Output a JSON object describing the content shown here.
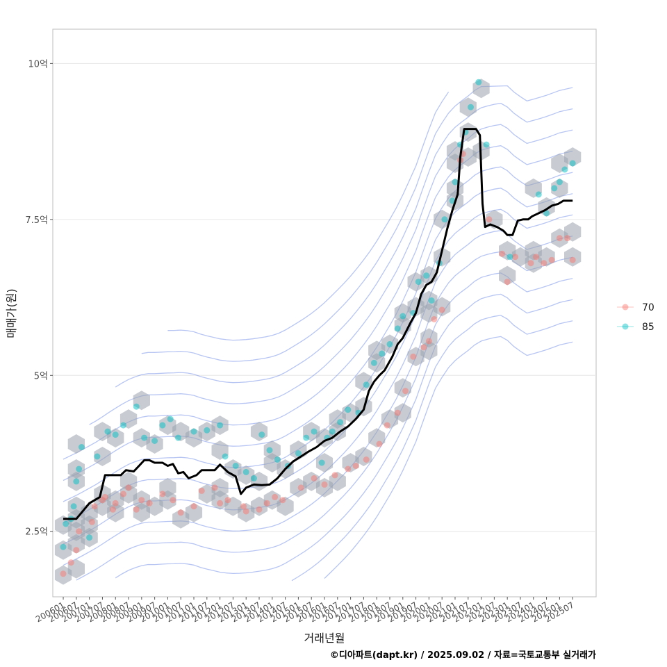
{
  "chart_data": {
    "type": "scatter",
    "xlabel": "거래년월",
    "ylabel": "매매가(원)",
    "caption": "©디아파트(dapt.kr) / 2025.09.02 / 자료=국토교통부 실거래가",
    "ylim": [
      1.45,
      10.55
    ],
    "y_ticks": [
      {
        "value": 2.5,
        "label": "2.5억"
      },
      {
        "value": 5,
        "label": "5억"
      },
      {
        "value": 7.5,
        "label": "7.5억"
      },
      {
        "value": 10,
        "label": "10억"
      }
    ],
    "x_range": [
      2005.6,
      2026.4
    ],
    "x_ticks": [
      "200601",
      "200607",
      "200701",
      "200707",
      "200801",
      "200807",
      "200901",
      "200907",
      "201001",
      "201007",
      "201101",
      "201107",
      "201201",
      "201207",
      "201301",
      "201307",
      "201401",
      "201407",
      "201501",
      "201507",
      "201601",
      "201607",
      "201701",
      "201707",
      "201801",
      "201807",
      "201901",
      "201907",
      "202001",
      "202007",
      "202101",
      "202107",
      "202201",
      "202207",
      "202301",
      "202307",
      "202401",
      "202407",
      "202501",
      "202507"
    ],
    "legend": {
      "position": "right",
      "entries": [
        {
          "name": "70",
          "color": "#F8766D"
        },
        {
          "name": "85",
          "color": "#00BFC4"
        }
      ]
    },
    "trend_line": {
      "name": "moving average",
      "color": "#000000",
      "points": [
        [
          2006.0,
          2.7
        ],
        [
          2006.5,
          2.7
        ],
        [
          2006.7,
          2.8
        ],
        [
          2007.0,
          2.95
        ],
        [
          2007.4,
          3.05
        ],
        [
          2007.6,
          3.4
        ],
        [
          2008.2,
          3.4
        ],
        [
          2008.4,
          3.48
        ],
        [
          2008.7,
          3.46
        ],
        [
          2008.9,
          3.55
        ],
        [
          2009.1,
          3.64
        ],
        [
          2009.3,
          3.64
        ],
        [
          2009.5,
          3.6
        ],
        [
          2009.8,
          3.6
        ],
        [
          2010.0,
          3.55
        ],
        [
          2010.2,
          3.58
        ],
        [
          2010.4,
          3.43
        ],
        [
          2010.6,
          3.45
        ],
        [
          2010.8,
          3.35
        ],
        [
          2011.1,
          3.4
        ],
        [
          2011.3,
          3.48
        ],
        [
          2011.5,
          3.48
        ],
        [
          2011.8,
          3.48
        ],
        [
          2012.0,
          3.57
        ],
        [
          2012.3,
          3.45
        ],
        [
          2012.6,
          3.38
        ],
        [
          2012.8,
          3.1
        ],
        [
          2013.0,
          3.2
        ],
        [
          2013.3,
          3.25
        ],
        [
          2013.6,
          3.24
        ],
        [
          2013.9,
          3.25
        ],
        [
          2014.2,
          3.35
        ],
        [
          2014.5,
          3.5
        ],
        [
          2014.8,
          3.62
        ],
        [
          2015.1,
          3.7
        ],
        [
          2015.4,
          3.78
        ],
        [
          2015.7,
          3.85
        ],
        [
          2016.0,
          3.95
        ],
        [
          2016.3,
          4.0
        ],
        [
          2016.6,
          4.1
        ],
        [
          2016.9,
          4.18
        ],
        [
          2017.2,
          4.3
        ],
        [
          2017.5,
          4.45
        ],
        [
          2017.7,
          4.75
        ],
        [
          2017.9,
          4.9
        ],
        [
          2018.1,
          5.0
        ],
        [
          2018.3,
          5.08
        ],
        [
          2018.6,
          5.3
        ],
        [
          2018.8,
          5.5
        ],
        [
          2019.0,
          5.6
        ],
        [
          2019.3,
          5.85
        ],
        [
          2019.5,
          6.0
        ],
        [
          2019.7,
          6.3
        ],
        [
          2019.9,
          6.45
        ],
        [
          2020.1,
          6.5
        ],
        [
          2020.3,
          6.65
        ],
        [
          2020.5,
          7.0
        ],
        [
          2020.7,
          7.35
        ],
        [
          2020.9,
          7.65
        ],
        [
          2021.1,
          7.9
        ],
        [
          2021.2,
          8.5
        ],
        [
          2021.35,
          8.95
        ],
        [
          2021.8,
          8.95
        ],
        [
          2021.95,
          8.85
        ],
        [
          2022.05,
          7.75
        ],
        [
          2022.15,
          7.38
        ],
        [
          2022.35,
          7.42
        ],
        [
          2022.6,
          7.38
        ],
        [
          2022.85,
          7.32
        ],
        [
          2023.0,
          7.25
        ],
        [
          2023.2,
          7.25
        ],
        [
          2023.4,
          7.48
        ],
        [
          2023.6,
          7.5
        ],
        [
          2023.8,
          7.5
        ],
        [
          2023.95,
          7.55
        ],
        [
          2024.2,
          7.6
        ],
        [
          2024.45,
          7.65
        ],
        [
          2024.7,
          7.72
        ],
        [
          2024.95,
          7.75
        ],
        [
          2025.15,
          7.8
        ],
        [
          2025.5,
          7.8
        ]
      ]
    },
    "series": [
      {
        "name": "70",
        "color": "#F8766D",
        "points": [
          [
            2006.0,
            1.82
          ],
          [
            2006.3,
            2.0
          ],
          [
            2006.5,
            2.2
          ],
          [
            2006.6,
            2.5
          ],
          [
            2007.1,
            2.65
          ],
          [
            2007.2,
            2.9
          ],
          [
            2007.5,
            3.0
          ],
          [
            2007.6,
            3.05
          ],
          [
            2007.9,
            2.85
          ],
          [
            2008.0,
            2.95
          ],
          [
            2008.3,
            3.1
          ],
          [
            2008.5,
            3.2
          ],
          [
            2008.8,
            2.85
          ],
          [
            2009.0,
            3.0
          ],
          [
            2009.3,
            2.95
          ],
          [
            2009.8,
            3.1
          ],
          [
            2010.2,
            3.0
          ],
          [
            2010.5,
            2.8
          ],
          [
            2011.0,
            2.9
          ],
          [
            2011.3,
            3.15
          ],
          [
            2011.8,
            3.2
          ],
          [
            2012.0,
            2.95
          ],
          [
            2012.3,
            3.0
          ],
          [
            2012.9,
            2.9
          ],
          [
            2013.0,
            2.82
          ],
          [
            2013.5,
            2.85
          ],
          [
            2013.8,
            2.95
          ],
          [
            2014.1,
            3.05
          ],
          [
            2014.4,
            3.0
          ],
          [
            2015.1,
            3.2
          ],
          [
            2015.6,
            3.35
          ],
          [
            2016.0,
            3.25
          ],
          [
            2016.4,
            3.4
          ],
          [
            2016.9,
            3.5
          ],
          [
            2017.2,
            3.55
          ],
          [
            2017.6,
            3.65
          ],
          [
            2018.1,
            3.9
          ],
          [
            2018.4,
            4.2
          ],
          [
            2018.8,
            4.4
          ],
          [
            2019.1,
            4.75
          ],
          [
            2019.4,
            5.3
          ],
          [
            2019.8,
            5.45
          ],
          [
            2020.0,
            5.55
          ],
          [
            2020.2,
            5.9
          ],
          [
            2020.5,
            6.05
          ],
          [
            2021.2,
            8.45
          ],
          [
            2021.3,
            8.55
          ],
          [
            2022.3,
            7.5
          ],
          [
            2022.8,
            6.95
          ],
          [
            2023.0,
            6.5
          ],
          [
            2023.3,
            6.9
          ],
          [
            2023.9,
            6.8
          ],
          [
            2024.1,
            6.9
          ],
          [
            2024.4,
            6.8
          ],
          [
            2024.7,
            6.85
          ],
          [
            2025.0,
            7.2
          ],
          [
            2025.3,
            7.2
          ],
          [
            2025.5,
            6.85
          ]
        ]
      },
      {
        "name": "85",
        "color": "#00BFC4",
        "points": [
          [
            2006.0,
            2.25
          ],
          [
            2006.1,
            2.62
          ],
          [
            2006.3,
            2.7
          ],
          [
            2006.4,
            2.9
          ],
          [
            2006.5,
            3.3
          ],
          [
            2006.6,
            3.5
          ],
          [
            2006.7,
            3.85
          ],
          [
            2007.0,
            2.4
          ],
          [
            2007.3,
            3.7
          ],
          [
            2007.7,
            4.1
          ],
          [
            2008.0,
            4.05
          ],
          [
            2008.3,
            4.2
          ],
          [
            2008.8,
            4.5
          ],
          [
            2009.1,
            4.0
          ],
          [
            2009.5,
            3.95
          ],
          [
            2009.8,
            4.2
          ],
          [
            2010.1,
            4.3
          ],
          [
            2010.4,
            4.0
          ],
          [
            2011.0,
            4.1
          ],
          [
            2011.5,
            4.12
          ],
          [
            2012.0,
            4.2
          ],
          [
            2012.2,
            3.7
          ],
          [
            2012.6,
            3.55
          ],
          [
            2013.0,
            3.45
          ],
          [
            2013.3,
            3.35
          ],
          [
            2013.6,
            4.05
          ],
          [
            2013.9,
            3.8
          ],
          [
            2014.2,
            3.65
          ],
          [
            2014.6,
            3.55
          ],
          [
            2015.0,
            3.75
          ],
          [
            2015.3,
            4.0
          ],
          [
            2015.6,
            4.1
          ],
          [
            2015.9,
            3.6
          ],
          [
            2016.1,
            4.0
          ],
          [
            2016.3,
            4.1
          ],
          [
            2016.6,
            4.25
          ],
          [
            2016.9,
            4.45
          ],
          [
            2017.3,
            4.4
          ],
          [
            2017.6,
            4.85
          ],
          [
            2017.9,
            5.2
          ],
          [
            2018.2,
            5.35
          ],
          [
            2018.5,
            5.5
          ],
          [
            2018.8,
            5.75
          ],
          [
            2019.0,
            5.95
          ],
          [
            2019.4,
            6.0
          ],
          [
            2019.6,
            6.5
          ],
          [
            2019.9,
            6.6
          ],
          [
            2020.1,
            6.2
          ],
          [
            2020.4,
            6.8
          ],
          [
            2020.6,
            7.5
          ],
          [
            2020.9,
            7.8
          ],
          [
            2021.0,
            8.1
          ],
          [
            2021.2,
            8.7
          ],
          [
            2021.4,
            8.9
          ],
          [
            2021.6,
            9.3
          ],
          [
            2021.9,
            9.7
          ],
          [
            2022.2,
            8.7
          ],
          [
            2023.1,
            6.9
          ],
          [
            2024.2,
            7.9
          ],
          [
            2024.5,
            7.6
          ],
          [
            2024.8,
            8.0
          ],
          [
            2025.0,
            8.1
          ],
          [
            2025.2,
            8.3
          ],
          [
            2025.5,
            8.4
          ]
        ]
      }
    ]
  }
}
